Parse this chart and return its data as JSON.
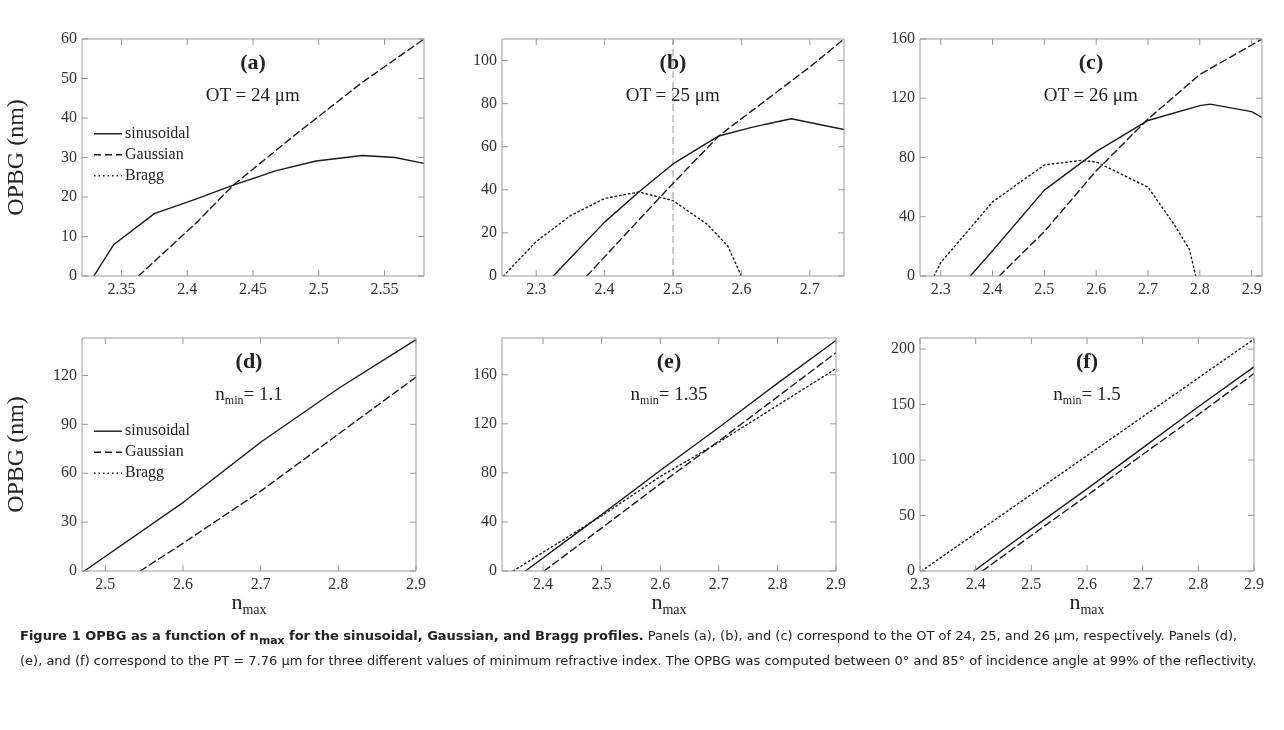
{
  "chart_data": [
    {
      "type": "line",
      "title": "(a)",
      "subtitle": "OT = 24 μm",
      "ylabel": "OPBG (nm)",
      "xlim": [
        2.32,
        2.58
      ],
      "xticks": [
        2.35,
        2.4,
        2.45,
        2.5,
        2.55
      ],
      "ylim": [
        0,
        60
      ],
      "yticks": [
        0,
        10,
        20,
        30,
        40,
        50,
        60
      ],
      "legend": "left",
      "series": [
        {
          "name": "sinusoidal",
          "color": "#1a1a1a",
          "line_style": "solid",
          "x": [
            2.329,
            2.344,
            2.375,
            2.406,
            2.435,
            2.467,
            2.498,
            2.533,
            2.558,
            2.58
          ],
          "values": [
            0,
            7.9,
            15.8,
            19.4,
            23,
            26.6,
            29.1,
            30.5,
            30,
            28.5
          ]
        },
        {
          "name": "Gaussian",
          "color": "#1a1a1a",
          "line_style": "dashed",
          "x": [
            2.363,
            2.407,
            2.435,
            2.483,
            2.533,
            2.58
          ],
          "values": [
            0,
            13.5,
            23,
            36,
            49,
            60
          ]
        },
        {
          "name": "Bragg",
          "color": "#1a1a1a",
          "line_style": "dotted"
        }
      ]
    },
    {
      "type": "line",
      "title": "(b)",
      "subtitle": "OT = 25 μm",
      "xlim": [
        2.25,
        2.75
      ],
      "xticks": [
        2.3,
        2.4,
        2.5,
        2.6,
        2.7
      ],
      "ylim": [
        0,
        110
      ],
      "yticks": [
        0,
        20,
        40,
        60,
        80,
        100
      ],
      "ref_lines": [
        {
          "axis": "x",
          "value": 2.5,
          "color": "#999999",
          "line_style": "dashed"
        }
      ],
      "series": [
        {
          "color": "#1a1a1a",
          "line_style": "solid",
          "x": [
            2.325,
            2.4,
            2.45,
            2.5,
            2.567,
            2.615,
            2.673,
            2.75
          ],
          "values": [
            0,
            25,
            39,
            52,
            65,
            69,
            73,
            68
          ]
        },
        {
          "color": "#1a1a1a",
          "line_style": "dashed",
          "x": [
            2.374,
            2.45,
            2.5,
            2.567,
            2.6,
            2.7,
            2.75
          ],
          "values": [
            0,
            26,
            43,
            65,
            73,
            97,
            110
          ]
        },
        {
          "color": "#1a1a1a",
          "line_style": "dotted",
          "x": [
            2.252,
            2.3,
            2.35,
            2.4,
            2.45,
            2.5,
            2.55,
            2.58,
            2.6
          ],
          "values": [
            0,
            16,
            28,
            36,
            39,
            35,
            24,
            14,
            0
          ]
        }
      ]
    },
    {
      "type": "line",
      "title": "(c)",
      "subtitle": "OT = 26 μm",
      "xlim": [
        2.26,
        2.92
      ],
      "xticks": [
        2.3,
        2.4,
        2.5,
        2.6,
        2.7,
        2.8,
        2.9
      ],
      "ylim": [
        0,
        160
      ],
      "yticks": [
        0,
        40,
        80,
        120,
        160
      ],
      "series": [
        {
          "color": "#1a1a1a",
          "line_style": "solid",
          "x": [
            2.357,
            2.4,
            2.5,
            2.6,
            2.7,
            2.8,
            2.82,
            2.9,
            2.92
          ],
          "values": [
            0,
            17,
            58,
            84,
            105,
            115,
            116,
            111,
            107
          ]
        },
        {
          "color": "#1a1a1a",
          "line_style": "dashed",
          "x": [
            2.413,
            2.5,
            2.6,
            2.7,
            2.8,
            2.92
          ],
          "values": [
            0,
            30,
            71,
            106,
            136,
            160
          ]
        },
        {
          "color": "#1a1a1a",
          "line_style": "dotted",
          "x": [
            2.287,
            2.3,
            2.4,
            2.5,
            2.57,
            2.6,
            2.7,
            2.75,
            2.78,
            2.792
          ],
          "values": [
            0,
            9,
            50,
            75,
            78,
            77,
            60,
            35,
            18,
            0
          ]
        }
      ]
    },
    {
      "type": "line",
      "title": "(d)",
      "subtitle": "n$_{min}$= 1.1",
      "ylabel": "OPBG (nm)",
      "xlabel": "n$_{max}$",
      "xlim": [
        2.47,
        2.9
      ],
      "xticks": [
        2.5,
        2.6,
        2.7,
        2.8,
        2.9
      ],
      "ylim": [
        0,
        143
      ],
      "yticks": [
        0,
        30,
        60,
        90,
        120
      ],
      "legend": "left",
      "series": [
        {
          "name": "sinusoidal",
          "color": "#1a1a1a",
          "line_style": "solid",
          "x": [
            2.473,
            2.6,
            2.7,
            2.8,
            2.9
          ],
          "values": [
            0,
            42,
            79,
            112,
            142
          ]
        },
        {
          "name": "Gaussian",
          "color": "#1a1a1a",
          "line_style": "dashed",
          "x": [
            2.545,
            2.6,
            2.7,
            2.8,
            2.9
          ],
          "values": [
            0,
            17,
            49,
            84,
            119
          ]
        },
        {
          "name": "Bragg",
          "color": "#1a1a1a",
          "line_style": "dotted"
        }
      ]
    },
    {
      "type": "line",
      "title": "(e)",
      "subtitle": "n$_{min}$= 1.35",
      "xlabel": "n$_{max}$",
      "xlim": [
        2.33,
        2.9
      ],
      "xticks": [
        2.4,
        2.5,
        2.6,
        2.7,
        2.8,
        2.9
      ],
      "ylim": [
        0,
        190
      ],
      "yticks": [
        0,
        40,
        80,
        120,
        160
      ],
      "series": [
        {
          "color": "#1a1a1a",
          "line_style": "solid",
          "x": [
            2.37,
            2.5,
            2.6,
            2.7,
            2.8,
            2.9
          ],
          "values": [
            0,
            46,
            82,
            117,
            153,
            188
          ]
        },
        {
          "color": "#1a1a1a",
          "line_style": "dashed",
          "x": [
            2.4017,
            2.5,
            2.6,
            2.7,
            2.8,
            2.9
          ],
          "values": [
            0,
            35,
            71,
            106,
            142,
            178
          ]
        },
        {
          "color": "#1a1a1a",
          "line_style": "dotted",
          "x": [
            2.349,
            2.5,
            2.6,
            2.7,
            2.8,
            2.9
          ],
          "values": [
            0,
            45,
            77,
            105,
            135,
            165
          ]
        }
      ]
    },
    {
      "type": "line",
      "title": "(f)",
      "subtitle": "n$_{min}$= 1.5",
      "xlabel": "n$_{max}$",
      "xlim": [
        2.3,
        2.9
      ],
      "xticks": [
        2.3,
        2.4,
        2.5,
        2.6,
        2.7,
        2.8,
        2.9
      ],
      "ylim": [
        0,
        210
      ],
      "yticks": [
        0,
        50,
        100,
        150,
        200
      ],
      "series": [
        {
          "color": "#1a1a1a",
          "line_style": "solid",
          "x": [
            2.397,
            2.5,
            2.6,
            2.7,
            2.8,
            2.9
          ],
          "values": [
            0,
            38,
            74,
            111,
            148,
            184
          ]
        },
        {
          "color": "#1a1a1a",
          "line_style": "dashed",
          "x": [
            2.412,
            2.5,
            2.6,
            2.7,
            2.8,
            2.9
          ],
          "values": [
            0,
            32,
            68,
            105,
            141,
            178
          ]
        },
        {
          "color": "#1a1a1a",
          "line_style": "dotted",
          "x": [
            2.303,
            2.4,
            2.5,
            2.6,
            2.7,
            2.8,
            2.9
          ],
          "values": [
            0,
            34,
            69,
            104,
            139,
            174,
            209
          ]
        }
      ]
    },
    {
      "type": "other",
      "title": "Figure 1 OPBG as a function of n$_{max}$ for the sinusoidal, Gaussian, and Bragg profiles.",
      "annotations": [
        "Panels (a), (b), and (c) correspond to the OT of 24, 25, and 26 μm, respectively. Panels (d), (e), and (f) correspond to the PT = 7.76 μm for three different values of minimum refractive index. The OPBG was computed between 0° and 85° of incidence angle at 99% of the reflectivity."
      ]
    }
  ]
}
